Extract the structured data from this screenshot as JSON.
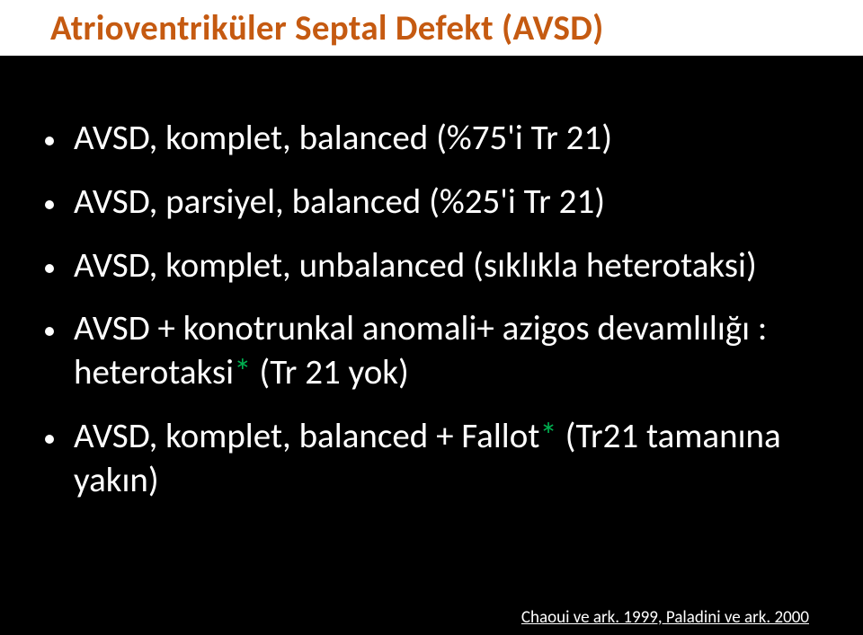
{
  "title": "Atrioventriküler Septal Defekt (AVSD)",
  "title_color": "#c55a11",
  "title_bg": "#ffffff",
  "title_fontsize": 39,
  "background_color": "#000000",
  "body_color": "#ffffff",
  "body_fontsize": 39,
  "star_color": "#00b050",
  "bullets": [
    {
      "parts": [
        {
          "t": "AVSD, komplet, balanced (%75'i Tr 21)"
        }
      ]
    },
    {
      "parts": [
        {
          "t": "AVSD, parsiyel, balanced (%25'i Tr 21)"
        }
      ]
    },
    {
      "parts": [
        {
          "t": "AVSD, komplet, unbalanced (sıklıkla heterotaksi)"
        }
      ]
    },
    {
      "parts": [
        {
          "t": "AVSD + konotrunkal anomali+ azigos devamlılığı : heterotaksi"
        },
        {
          "t": "*",
          "star": true
        },
        {
          "t": " (Tr 21 yok)"
        }
      ]
    },
    {
      "parts": [
        {
          "t": "AVSD, komplet, balanced + Fallot"
        },
        {
          "t": "*",
          "star": true
        },
        {
          "t": "  (Tr21 tamanına yakın)"
        }
      ]
    }
  ],
  "citation": "Chaoui  ve ark. 1999, Paladini ve ark. 2000"
}
